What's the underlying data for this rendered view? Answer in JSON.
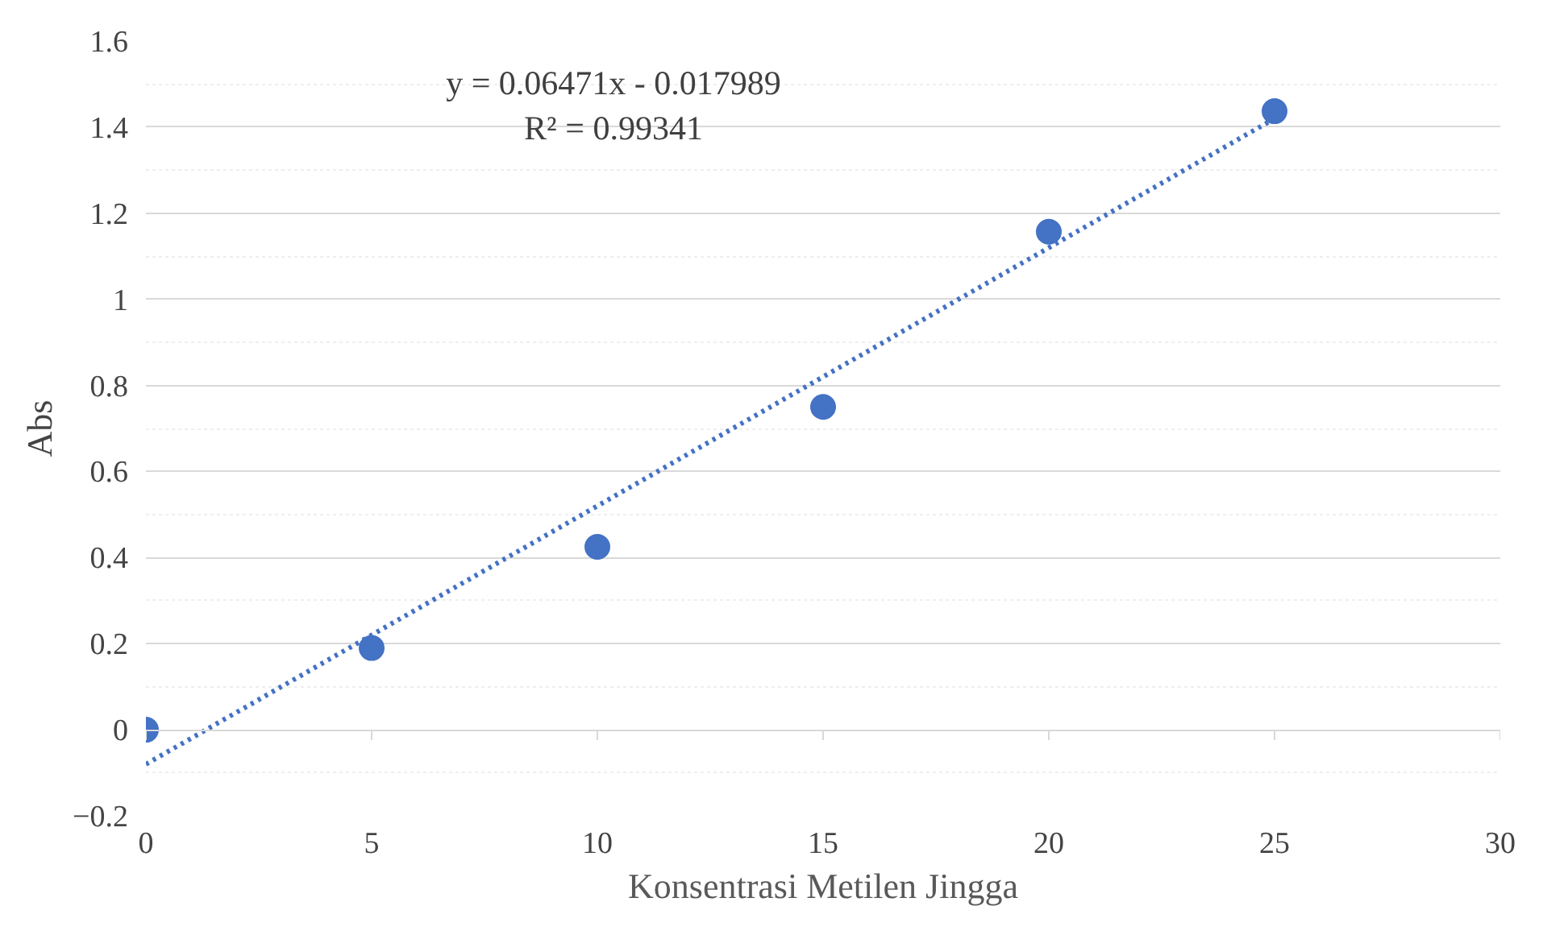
{
  "chart_data": {
    "type": "scatter",
    "xlabel": "Konsentrasi Metilen Jingga",
    "ylabel": "Abs",
    "x": [
      0,
      5,
      10,
      15,
      20,
      25
    ],
    "series": [
      {
        "color": "#4472c4",
        "values": [
          0,
          0.19,
          0.425,
          0.75,
          1.157,
          1.437
        ],
        "marker": "circle"
      },
      {
        "type": "line",
        "color": "#4472c4",
        "x": [
          0,
          25
        ],
        "values": [
          -0.08,
          1.42
        ],
        "line_style": "dotted"
      }
    ],
    "xlim": [
      0,
      30
    ],
    "xticks": [
      0,
      5,
      10,
      15,
      20,
      25,
      30
    ],
    "ylim": [
      -0.2,
      1.6
    ],
    "yticks": [
      -0.2,
      {
        "value": -0.1,
        "label": null
      },
      0,
      {
        "value": 0.1,
        "label": null
      },
      0.2,
      {
        "value": 0.3,
        "label": null
      },
      0.4,
      {
        "value": 0.5,
        "label": null
      },
      0.6,
      {
        "value": 0.7,
        "label": null
      },
      0.8,
      {
        "value": 0.9,
        "label": null
      },
      1,
      {
        "value": 1.1,
        "label": null
      },
      1.2,
      {
        "value": 1.3,
        "label": null
      },
      1.4,
      {
        "value": 1.5,
        "label": null
      },
      1.6
    ],
    "grid": "y",
    "annotations": [
      "y = 0.06471x - 0.017989",
      "R² = 0.99341"
    ]
  }
}
